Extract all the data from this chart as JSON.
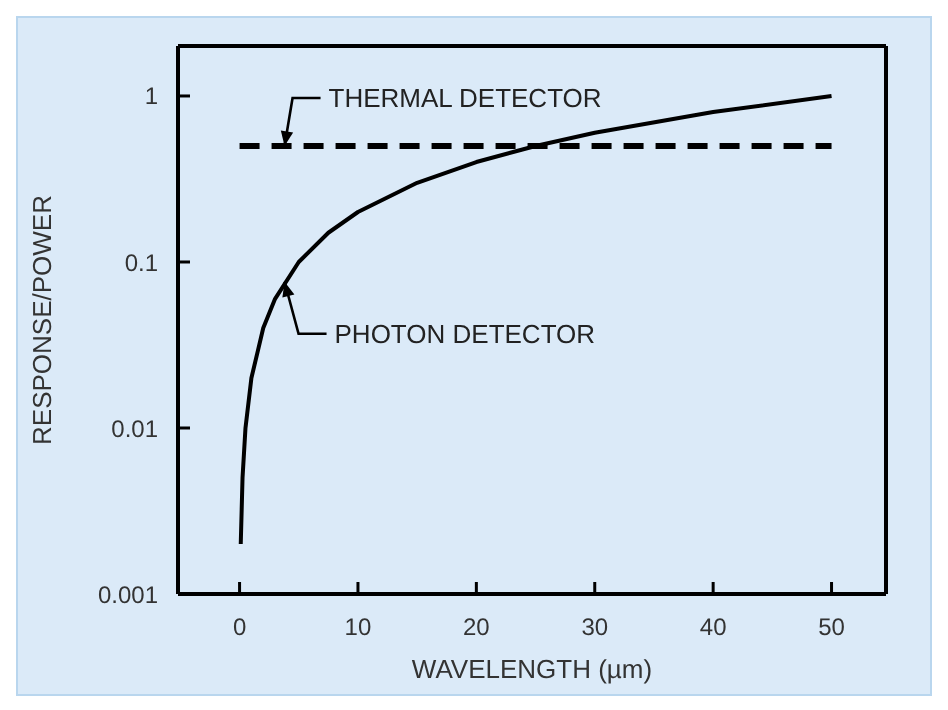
{
  "chart_data": {
    "type": "line",
    "xlabel": "WAVELENGTH (µm)",
    "ylabel": "RESPONSE/POWER",
    "xlim": [
      -5.2,
      54.6
    ],
    "xticks": [
      0,
      10,
      20,
      30,
      40,
      50
    ],
    "ylim": [
      0.001,
      2
    ],
    "yticks": [
      0.001,
      0.01,
      0.1,
      1
    ],
    "log": "y",
    "grid": false,
    "legend": false,
    "marker": "none",
    "series": [
      {
        "color": "#000000",
        "line_style": "solid",
        "x": [
          0.1,
          0.25,
          0.5,
          1,
          2,
          3,
          5,
          7.5,
          10,
          15,
          20,
          25,
          30,
          40,
          50
        ],
        "values": [
          0.002,
          0.005,
          0.01,
          0.02,
          0.04,
          0.06,
          0.1,
          0.15,
          0.2,
          0.3,
          0.4,
          0.5,
          0.6,
          0.8,
          1
        ]
      },
      {
        "color": "#000000",
        "line_style": "dashed",
        "x": [
          0,
          50
        ],
        "values": [
          0.5,
          0.5
        ]
      }
    ],
    "annotations": [
      {
        "text": "THERMAL DETECTOR",
        "x": 3.8,
        "y": 0.5
      },
      {
        "text": "PHOTON DETECTOR",
        "x": 3.8,
        "y": 0.076
      }
    ]
  }
}
